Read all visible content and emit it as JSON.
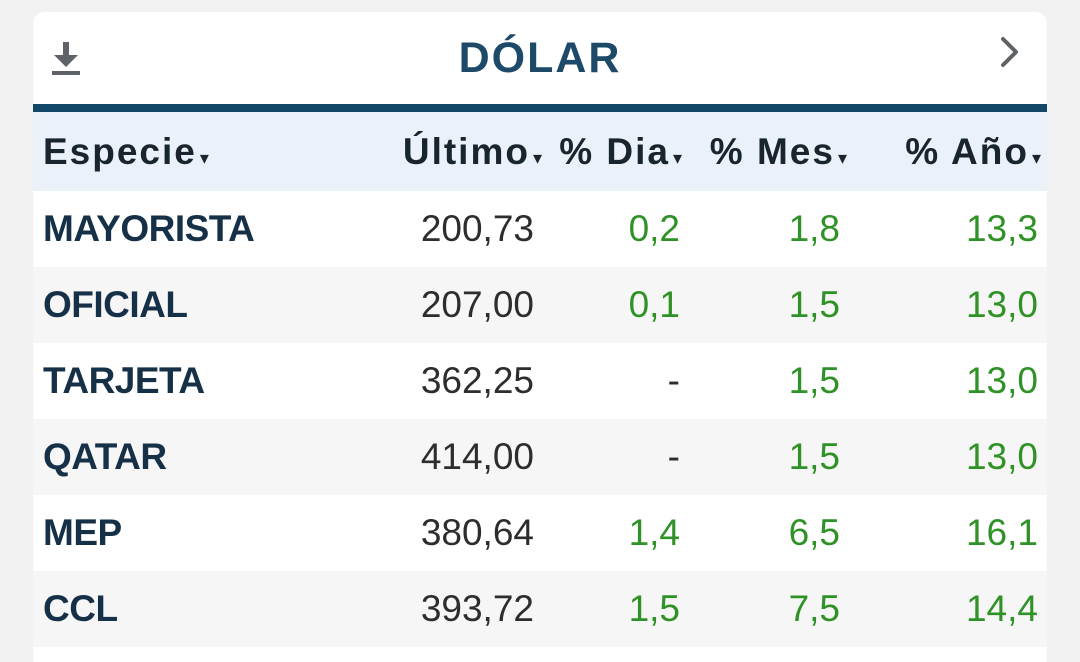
{
  "title": "DÓLAR",
  "icons": {
    "download": "download-icon",
    "next": "chevron-right-icon"
  },
  "colors": {
    "title": "#1d4a68",
    "rule": "#134767",
    "header_bg": "#eaf1f8",
    "alt_row_bg": "#f6f6f6",
    "positive": "#2f9226"
  },
  "table": {
    "columns": [
      {
        "label": "Especie",
        "sort_icon": "▾"
      },
      {
        "label": "Último",
        "sort_icon": "▾"
      },
      {
        "label": "% Dia",
        "sort_icon": "▾"
      },
      {
        "label": "% Mes",
        "sort_icon": "▾"
      },
      {
        "label": "% Año",
        "sort_icon": "▾"
      }
    ],
    "rows": [
      {
        "especie": "MAYORISTA",
        "ultimo": "200,73",
        "dia": "0,2",
        "mes": "1,8",
        "anio": "13,3"
      },
      {
        "especie": "OFICIAL",
        "ultimo": "207,00",
        "dia": "0,1",
        "mes": "1,5",
        "anio": "13,0"
      },
      {
        "especie": "TARJETA",
        "ultimo": "362,25",
        "dia": "-",
        "mes": "1,5",
        "anio": "13,0"
      },
      {
        "especie": "QATAR",
        "ultimo": "414,00",
        "dia": "-",
        "mes": "1,5",
        "anio": "13,0"
      },
      {
        "especie": "MEP",
        "ultimo": "380,64",
        "dia": "1,4",
        "mes": "6,5",
        "anio": "16,1"
      },
      {
        "especie": "CCL",
        "ultimo": "393,72",
        "dia": "1,5",
        "mes": "7,5",
        "anio": "14,4"
      }
    ]
  }
}
